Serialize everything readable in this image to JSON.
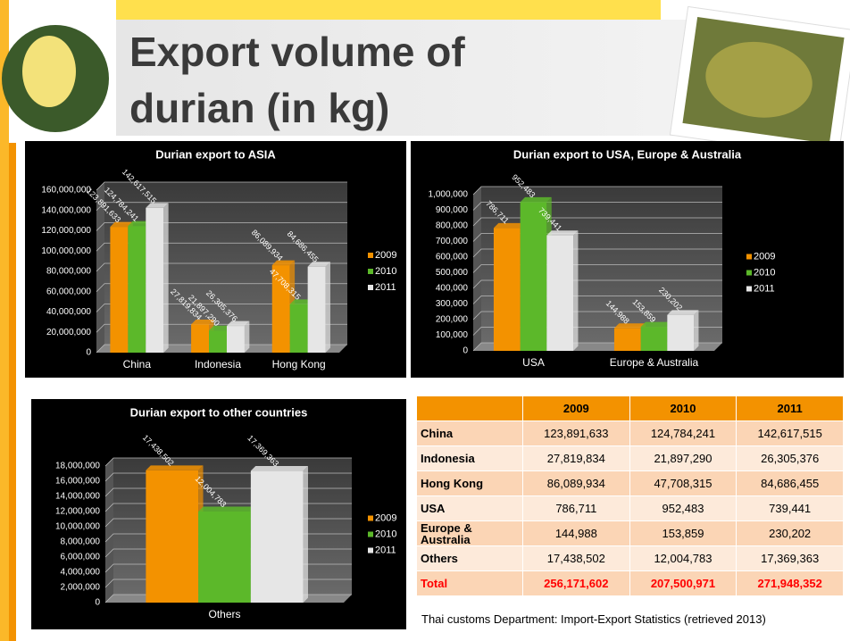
{
  "title_lines": [
    "Export volume of",
    "durian (in kg)"
  ],
  "chart_data": [
    {
      "type": "bar",
      "title": "Durian export to ASIA",
      "categories": [
        "China",
        "Indonesia",
        "Hong Kong"
      ],
      "series": [
        {
          "name": "2009",
          "color": "#f39200",
          "values": [
            123891633,
            27819834,
            86089934
          ],
          "value_labels": [
            "123,891,633",
            "27,819,834",
            "86,089,934"
          ]
        },
        {
          "name": "2010",
          "color": "#5cb82a",
          "values": [
            124784241,
            21897290,
            47708315
          ],
          "value_labels": [
            "124,784,241",
            "21,897,290",
            "47,708,315"
          ]
        },
        {
          "name": "2011",
          "color": "#e6e6e6",
          "values": [
            142617515,
            26305376,
            84686455
          ],
          "value_labels": [
            "142,617,515",
            "26,305,376",
            "84,686,455"
          ]
        }
      ],
      "ylim": [
        0,
        160000000
      ],
      "yticks": [
        0,
        {
          "value": 20000000,
          "label": "20,000,000"
        },
        {
          "value": 40000000,
          "label": "40,000,000"
        },
        {
          "value": 60000000,
          "label": "60,000,000"
        },
        {
          "value": 80000000,
          "label": "80,000,000"
        },
        {
          "value": 100000000,
          "label": "100,000,000"
        },
        {
          "value": 120000000,
          "label": "120,000,000"
        },
        {
          "value": 140000000,
          "label": "140,000,000"
        },
        {
          "value": 160000000,
          "label": "160,000,000"
        }
      ],
      "grid": true,
      "legend": "right"
    },
    {
      "type": "bar",
      "title": "Durian export to USA, Europe & Australia",
      "categories": [
        "USA",
        "Europe & Australia"
      ],
      "series": [
        {
          "name": "2009",
          "color": "#f39200",
          "values": [
            786711,
            144988
          ],
          "value_labels": [
            "786,711",
            "144,988"
          ]
        },
        {
          "name": "2010",
          "color": "#5cb82a",
          "values": [
            952483,
            153859
          ],
          "value_labels": [
            "952,483",
            "153,859"
          ]
        },
        {
          "name": "2011",
          "color": "#e6e6e6",
          "values": [
            739441,
            230202
          ],
          "value_labels": [
            "739,441",
            "230,202"
          ]
        }
      ],
      "ylim": [
        0,
        1000000
      ],
      "yticks": [
        0,
        {
          "value": 100000,
          "label": "100,000"
        },
        {
          "value": 200000,
          "label": "200,000"
        },
        {
          "value": 300000,
          "label": "300,000"
        },
        {
          "value": 400000,
          "label": "400,000"
        },
        {
          "value": 500000,
          "label": "500,000"
        },
        {
          "value": 600000,
          "label": "600,000"
        },
        {
          "value": 700000,
          "label": "700,000"
        },
        {
          "value": 800000,
          "label": "800,000"
        },
        {
          "value": 900000,
          "label": "900,000"
        },
        {
          "value": 1000000,
          "label": "1,000,000"
        }
      ],
      "grid": true,
      "legend": "right"
    },
    {
      "type": "bar",
      "title": "Durian export to other countries",
      "categories": [
        "Others"
      ],
      "series": [
        {
          "name": "2009",
          "color": "#f39200",
          "values": [
            17438502
          ],
          "value_labels": [
            "17,438,502"
          ]
        },
        {
          "name": "2010",
          "color": "#5cb82a",
          "values": [
            12004783
          ],
          "value_labels": [
            "12,004,783"
          ]
        },
        {
          "name": "2011",
          "color": "#e6e6e6",
          "values": [
            17369363
          ],
          "value_labels": [
            "17,369,363"
          ]
        }
      ],
      "ylim": [
        0,
        18000000
      ],
      "yticks": [
        0,
        {
          "value": 2000000,
          "label": "2,000,000"
        },
        {
          "value": 4000000,
          "label": "4,000,000"
        },
        {
          "value": 6000000,
          "label": "6,000,000"
        },
        {
          "value": 8000000,
          "label": "8,000,000"
        },
        {
          "value": 10000000,
          "label": "10,000,000"
        },
        {
          "value": 12000000,
          "label": "12,000,000"
        },
        {
          "value": 14000000,
          "label": "14,000,000"
        },
        {
          "value": 16000000,
          "label": "16,000,000"
        },
        {
          "value": 18000000,
          "label": "18,000,000"
        }
      ],
      "grid": true,
      "legend": "right"
    }
  ],
  "table": {
    "columns": [
      "2009",
      "2010",
      "2011"
    ],
    "rows": [
      {
        "label": "China",
        "cells": [
          "123,891,633",
          "124,784,241",
          "142,617,515"
        ]
      },
      {
        "label": "Indonesia",
        "cells": [
          "27,819,834",
          "21,897,290",
          "26,305,376"
        ]
      },
      {
        "label": "Hong Kong",
        "cells": [
          "86,089,934",
          "47,708,315",
          "84,686,455"
        ]
      },
      {
        "label": "USA",
        "cells": [
          "786,711",
          "952,483",
          "739,441"
        ]
      },
      {
        "label": "Europe & Australia",
        "cells": [
          "144,988",
          "153,859",
          "230,202"
        ]
      },
      {
        "label": "Others",
        "cells": [
          "17,438,502",
          "12,004,783",
          "17,369,363"
        ]
      }
    ],
    "total": {
      "label": "Total",
      "cells": [
        "256,171,602",
        "207,500,971",
        "271,948,352"
      ]
    }
  },
  "source": "Thai customs Department: Import-Export Statistics (retrieved 2013)"
}
